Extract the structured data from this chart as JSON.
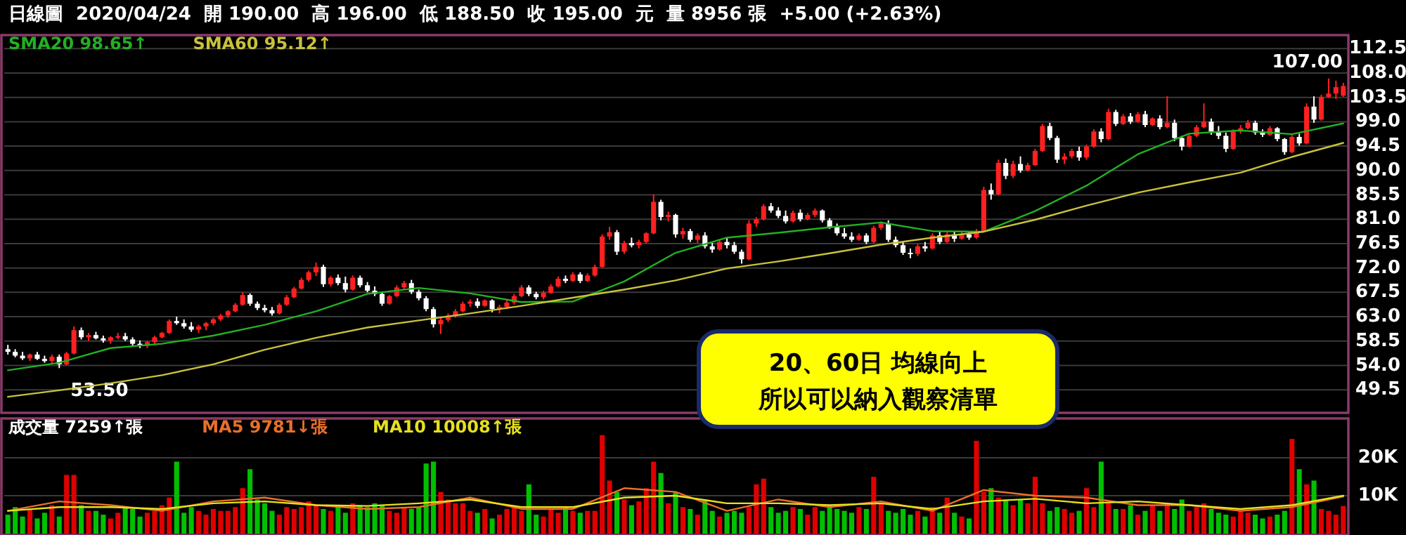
{
  "chart_data": [
    {
      "type": "candlestick",
      "title": "日線圖  2020/04/24  開 190.00  高 196.00  低 188.50  收 195.00  元  量 8956 張  +5.00 (+2.63%)",
      "categories": [
        null,
        null,
        null,
        null,
        null,
        null,
        null,
        null,
        null,
        null,
        null,
        null,
        null,
        null,
        null,
        null,
        null,
        null,
        null,
        null,
        null,
        null,
        null,
        null,
        null,
        null,
        null,
        null,
        null,
        null,
        null,
        null,
        null,
        null,
        null,
        null,
        null,
        null,
        null,
        null,
        null,
        null,
        null,
        null,
        null,
        null,
        null,
        null,
        null,
        null,
        null,
        null,
        null,
        null,
        null,
        null,
        null,
        null,
        null,
        null,
        null,
        null,
        null,
        null,
        null,
        null,
        null,
        null,
        null,
        null,
        null,
        null,
        null,
        null,
        null,
        null,
        null,
        null,
        null,
        null,
        null,
        null,
        null,
        null,
        null,
        null,
        null,
        null,
        null,
        null,
        null,
        null,
        null,
        null,
        null,
        null,
        null,
        null,
        null,
        null,
        null,
        null,
        null,
        null,
        null,
        null,
        null,
        null,
        null,
        null,
        null,
        null,
        null,
        null,
        null,
        null,
        null,
        null,
        null,
        null,
        null,
        null,
        null,
        null,
        null,
        null,
        null,
        null,
        null,
        null,
        null,
        null,
        null,
        null,
        null,
        null,
        null,
        null,
        null,
        null,
        null,
        null,
        null,
        null,
        null,
        null,
        null,
        null,
        null,
        null,
        null,
        null,
        null,
        null,
        null,
        null,
        null,
        null,
        null,
        null,
        null,
        null,
        null,
        null,
        null,
        null,
        null,
        null,
        null,
        null,
        null,
        null,
        null,
        null,
        null,
        null,
        null,
        null,
        null,
        null,
        null,
        null,
        null
      ],
      "ohlc": [
        [
          57,
          57.8,
          56,
          56.5
        ],
        [
          56.5,
          57,
          55.5,
          55.8
        ],
        [
          55.8,
          56.5,
          55,
          55.3
        ],
        [
          55.3,
          56.2,
          54.8,
          56
        ],
        [
          56,
          56.5,
          55,
          55.2
        ],
        [
          55.2,
          55.8,
          54.5,
          54.8
        ],
        [
          54.8,
          56,
          54.2,
          55.6
        ],
        [
          55.6,
          56,
          53.5,
          54.2
        ],
        [
          54.2,
          56.5,
          54,
          56.2
        ],
        [
          56.2,
          61.2,
          56,
          60.5
        ],
        [
          60.5,
          61,
          58.8,
          59.2
        ],
        [
          59.2,
          60,
          58.5,
          59.6
        ],
        [
          59.6,
          60.2,
          58.8,
          59
        ],
        [
          59,
          59.5,
          58.2,
          58.6
        ],
        [
          58.6,
          59.4,
          58,
          59.2
        ],
        [
          59.2,
          60,
          58.8,
          59.4
        ],
        [
          59.4,
          60,
          58.5,
          58.8
        ],
        [
          58.8,
          59.2,
          57.5,
          58
        ],
        [
          58,
          58.6,
          57.2,
          57.6
        ],
        [
          57.6,
          58.5,
          57.2,
          58.3
        ],
        [
          58.3,
          59.5,
          58,
          59.2
        ],
        [
          59.2,
          60.2,
          59,
          60
        ],
        [
          60,
          62.5,
          59.8,
          62.2
        ],
        [
          62.2,
          63,
          61.5,
          61.8
        ],
        [
          61.8,
          62.5,
          60.8,
          61.2
        ],
        [
          61.2,
          62,
          60.2,
          60.6
        ],
        [
          60.6,
          61.5,
          60,
          61.2
        ],
        [
          61.2,
          62,
          60.5,
          61.8
        ],
        [
          61.8,
          62.8,
          61.4,
          62.5
        ],
        [
          62.5,
          63.5,
          62.2,
          63.2
        ],
        [
          63.2,
          64.2,
          62.8,
          64
        ],
        [
          64,
          65.5,
          63.8,
          65.2
        ],
        [
          65.2,
          67.5,
          65,
          67
        ],
        [
          67,
          67.3,
          65,
          65.4
        ],
        [
          65.4,
          65.8,
          64.2,
          64.6
        ],
        [
          64.6,
          65.2,
          63.8,
          64.2
        ],
        [
          64.2,
          64.8,
          63.2,
          63.6
        ],
        [
          63.6,
          65.5,
          63.4,
          65.2
        ],
        [
          65.2,
          67,
          65,
          66.6
        ],
        [
          66.6,
          68.5,
          66.4,
          68.2
        ],
        [
          68.2,
          70.2,
          68,
          69.8
        ],
        [
          69.8,
          71.5,
          69.5,
          71.2
        ],
        [
          71.2,
          73,
          70.5,
          72.2
        ],
        [
          72.2,
          72.6,
          68.5,
          69
        ],
        [
          69,
          70.5,
          68.6,
          70.2
        ],
        [
          70.2,
          70.8,
          68.8,
          69.2
        ],
        [
          69.2,
          70.4,
          67.5,
          68
        ],
        [
          68,
          70.6,
          67.8,
          70.2
        ],
        [
          70.2,
          70.6,
          68.4,
          68.8
        ],
        [
          68.8,
          69.4,
          67.5,
          67.8
        ],
        [
          67.8,
          68.6,
          66.8,
          67.2
        ],
        [
          67.2,
          67.6,
          65,
          65.4
        ],
        [
          65.4,
          67,
          65.2,
          66.8
        ],
        [
          66.8,
          68.8,
          66.6,
          68.4
        ],
        [
          68.4,
          69.6,
          68,
          69.2
        ],
        [
          69.2,
          69.8,
          67.2,
          67.6
        ],
        [
          67.6,
          68,
          66,
          66.4
        ],
        [
          66.4,
          66.8,
          64,
          64.4
        ],
        [
          64.4,
          64.8,
          61,
          61.6
        ],
        [
          61.6,
          62.8,
          59.8,
          62.4
        ],
        [
          62.4,
          63.6,
          62,
          63.2
        ],
        [
          63.2,
          64.4,
          62.8,
          64
        ],
        [
          64,
          65.8,
          63.8,
          65.4
        ],
        [
          65.4,
          66.2,
          64.8,
          65.8
        ],
        [
          65.8,
          66.4,
          64.6,
          65
        ],
        [
          65,
          66.2,
          64.8,
          66
        ],
        [
          66,
          66.2,
          63.8,
          64.4
        ],
        [
          64.4,
          65.2,
          63.6,
          64.8
        ],
        [
          64.8,
          66,
          64.4,
          65.6
        ],
        [
          65.6,
          67.2,
          65.2,
          66.8
        ],
        [
          66.8,
          68.8,
          66.6,
          68.4
        ],
        [
          68.4,
          68.8,
          66.8,
          67.2
        ],
        [
          67.2,
          67.6,
          66.2,
          66.6
        ],
        [
          66.6,
          67.8,
          66.2,
          67.4
        ],
        [
          67.4,
          69,
          67.2,
          68.6
        ],
        [
          68.6,
          70.4,
          68.4,
          70
        ],
        [
          70,
          70.6,
          69.2,
          69.6
        ],
        [
          69.6,
          71.2,
          69.4,
          70.8
        ],
        [
          70.8,
          71.2,
          69.2,
          69.6
        ],
        [
          69.6,
          71,
          69.4,
          70.6
        ],
        [
          70.6,
          72.6,
          70.4,
          72.2
        ],
        [
          72.2,
          78.2,
          72,
          77.8
        ],
        [
          77.8,
          79.6,
          77.2,
          78.6
        ],
        [
          78.6,
          79,
          74.4,
          75
        ],
        [
          75,
          77,
          74.6,
          76.6
        ],
        [
          76.6,
          77.6,
          75.8,
          76.2
        ],
        [
          76.2,
          77.2,
          75.6,
          76.8
        ],
        [
          76.8,
          78.6,
          76.6,
          78.4
        ],
        [
          78.4,
          85.6,
          78.2,
          84.2
        ],
        [
          84.2,
          84.6,
          80.8,
          81.4
        ],
        [
          81.4,
          82.4,
          80.6,
          81.8
        ],
        [
          81.8,
          82,
          77.6,
          78.2
        ],
        [
          78.2,
          79.4,
          77.4,
          78.8
        ],
        [
          78.8,
          79.2,
          76.8,
          77.2
        ],
        [
          77.2,
          78.4,
          76.6,
          78
        ],
        [
          78,
          78.6,
          75.6,
          76
        ],
        [
          76,
          76.6,
          74.8,
          75.4
        ],
        [
          75.4,
          77.2,
          75.2,
          76.8
        ],
        [
          76.8,
          77.6,
          75.6,
          76.2
        ],
        [
          76.2,
          76.8,
          74.6,
          75
        ],
        [
          75,
          75.4,
          72.8,
          73.6
        ],
        [
          73.6,
          80.8,
          73.4,
          80.2
        ],
        [
          80.2,
          81.4,
          79.6,
          81
        ],
        [
          81,
          83.8,
          80.8,
          83.4
        ],
        [
          83.4,
          84,
          82.2,
          82.6
        ],
        [
          82.6,
          83.2,
          81.2,
          81.6
        ],
        [
          81.6,
          82.6,
          80.2,
          80.6
        ],
        [
          80.6,
          82.6,
          80.4,
          82.2
        ],
        [
          82.2,
          82.8,
          80.6,
          81
        ],
        [
          81,
          82.2,
          80.8,
          81.8
        ],
        [
          81.8,
          83,
          81.4,
          82.6
        ],
        [
          82.6,
          82.8,
          80.4,
          80.8
        ],
        [
          80.8,
          81.2,
          79.2,
          79.6
        ],
        [
          79.6,
          80.2,
          78,
          78.4
        ],
        [
          78.4,
          79.4,
          77.4,
          77.8
        ],
        [
          77.8,
          78.6,
          76.8,
          77.2
        ],
        [
          77.2,
          78.4,
          77,
          78
        ],
        [
          78,
          78.4,
          76.4,
          76.8
        ],
        [
          76.8,
          79.8,
          76.6,
          79.4
        ],
        [
          79.4,
          80.6,
          79,
          80.2
        ],
        [
          80.2,
          80.8,
          76.8,
          77.2
        ],
        [
          77.2,
          77.8,
          75.8,
          76.2
        ],
        [
          76.2,
          77,
          74.4,
          74.8
        ],
        [
          74.8,
          75.6,
          73.8,
          74.6
        ],
        [
          74.6,
          76.4,
          74.2,
          76
        ],
        [
          76,
          76.8,
          75,
          75.6
        ],
        [
          75.6,
          78.4,
          75.4,
          78
        ],
        [
          78,
          78.8,
          76.4,
          76.8
        ],
        [
          76.8,
          78.6,
          76.6,
          78.2
        ],
        [
          78.2,
          78.8,
          76.8,
          77.4
        ],
        [
          77.4,
          78.6,
          77.2,
          78.2
        ],
        [
          78.2,
          78.8,
          77.2,
          77.6
        ],
        [
          77.6,
          79.2,
          77.4,
          78.8
        ],
        [
          78.8,
          87,
          78.6,
          86.4
        ],
        [
          86.4,
          87.6,
          84.6,
          85.6
        ],
        [
          85.6,
          92,
          85.4,
          91.4
        ],
        [
          91.4,
          92.2,
          88.4,
          89
        ],
        [
          89,
          91.8,
          88.6,
          91.2
        ],
        [
          91.2,
          92.6,
          89.6,
          90
        ],
        [
          90,
          91.4,
          89.8,
          91
        ],
        [
          91,
          94,
          90.8,
          93.6
        ],
        [
          93.6,
          98.6,
          93.4,
          98.2
        ],
        [
          98.2,
          98.8,
          95.6,
          96
        ],
        [
          96,
          96.4,
          91.4,
          92
        ],
        [
          92,
          93.2,
          91.2,
          92.6
        ],
        [
          92.6,
          94,
          92.2,
          93.6
        ],
        [
          93.6,
          94.4,
          91.8,
          92.4
        ],
        [
          92.4,
          94.8,
          92,
          94.4
        ],
        [
          94.4,
          97.6,
          94.2,
          97.2
        ],
        [
          97.2,
          97.8,
          95.2,
          95.8
        ],
        [
          95.8,
          101.4,
          95.6,
          100.8
        ],
        [
          100.8,
          101.2,
          98.2,
          98.6
        ],
        [
          98.6,
          100.4,
          98.4,
          100
        ],
        [
          100,
          100.6,
          98.6,
          99
        ],
        [
          99,
          100.8,
          98.8,
          100.4
        ],
        [
          100.4,
          101,
          98,
          98.4
        ],
        [
          98.4,
          99.8,
          98.2,
          99.6
        ],
        [
          99.6,
          100.2,
          97.6,
          98
        ],
        [
          98,
          103.7,
          97.8,
          98.8
        ],
        [
          98.8,
          99.4,
          95.4,
          96
        ],
        [
          96,
          96.4,
          93.7,
          94.4
        ],
        [
          94.4,
          96.8,
          94.2,
          96.4
        ],
        [
          96.4,
          98.4,
          96.2,
          98
        ],
        [
          98,
          102.4,
          97.8,
          99
        ],
        [
          99,
          99.6,
          96.6,
          97.2
        ],
        [
          97.2,
          98.2,
          95.8,
          96.4
        ],
        [
          96.4,
          97,
          93.4,
          94
        ],
        [
          94,
          97.6,
          93.8,
          97.2
        ],
        [
          97.2,
          98.4,
          96.8,
          97.8
        ],
        [
          97.8,
          99.3,
          97.6,
          98.8
        ],
        [
          98.8,
          99.2,
          96.6,
          97
        ],
        [
          97,
          97.6,
          96.2,
          96.6
        ],
        [
          96.6,
          98.2,
          96.4,
          97.8
        ],
        [
          97.8,
          98,
          95.4,
          95.8
        ],
        [
          95.8,
          96,
          92.9,
          93.4
        ],
        [
          93.4,
          96.6,
          93.2,
          96.2
        ],
        [
          96.2,
          96.8,
          94.6,
          95
        ],
        [
          95,
          102.4,
          94.8,
          101.8
        ],
        [
          101.8,
          103.7,
          98.8,
          99.4
        ],
        [
          99.4,
          104,
          99.2,
          103.6
        ],
        [
          103.6,
          107,
          103.4,
          104.2
        ],
        [
          104.2,
          106.6,
          103.2,
          105.4
        ],
        [
          103.8,
          106.2,
          103.6,
          105.6
        ]
      ],
      "ylim": [
        45.5,
        115
      ],
      "yticks": [
        {
          "value": 49.5,
          "label": "49.5"
        },
        {
          "value": 54,
          "label": "54.0"
        },
        {
          "value": 58.5,
          "label": "58.5"
        },
        {
          "value": 63,
          "label": "63.0"
        },
        {
          "value": 67.5,
          "label": "67.5"
        },
        {
          "value": 72,
          "label": "72.0"
        },
        {
          "value": 76.5,
          "label": "76.5"
        },
        {
          "value": 81,
          "label": "81.0"
        },
        {
          "value": 85.5,
          "label": "85.5"
        },
        {
          "value": 90,
          "label": "90.0"
        },
        {
          "value": 94.5,
          "label": "94.5"
        },
        {
          "value": 99,
          "label": "99.0"
        },
        {
          "value": 103.5,
          "label": "103.5"
        },
        {
          "value": 108,
          "label": "108.0"
        },
        {
          "value": 112.5,
          "label": "112.5"
        }
      ],
      "tick_labels": "y",
      "grid": "y",
      "annotations": [
        "20、60日 均線向上",
        "所以可以納入觀察清單",
        "53.50",
        "107.00"
      ]
    },
    {
      "type": "line",
      "categories": [
        null,
        null,
        null,
        null,
        null,
        null,
        null,
        null,
        null,
        null,
        null,
        null,
        null,
        null,
        null,
        null,
        null,
        null,
        null,
        null,
        null,
        null,
        null,
        null,
        null,
        null,
        null
      ],
      "series": [
        {
          "name": "SMA20 98.65↑",
          "color": "#22b022",
          "values": [
            53.1,
            54.5,
            57.2,
            58,
            59.5,
            61.5,
            64,
            67.2,
            68.3,
            67.3,
            65.7,
            65.8,
            69.5,
            74.8,
            77.6,
            78.5,
            79.5,
            80.4,
            78.8,
            78.7,
            82.5,
            87.2,
            93,
            96.8,
            97.4,
            96.7,
            98.7
          ]
        },
        {
          "name": "SMA60 95.12↑",
          "color": "#c8c23c",
          "values": [
            48.2,
            49.4,
            50.7,
            52.2,
            54.2,
            56.9,
            59.1,
            61,
            62.3,
            63.6,
            65,
            66.5,
            68,
            69.7,
            71.9,
            73.2,
            74.7,
            76.3,
            77.6,
            78.7,
            80.9,
            83.5,
            85.9,
            87.8,
            89.6,
            92.5,
            95.1
          ]
        }
      ],
      "ylim": [
        45.5,
        115
      ],
      "tick_labels": false
    },
    {
      "type": "bar",
      "categories": [
        null,
        null,
        null,
        null,
        null,
        null,
        null,
        null,
        null,
        null,
        null,
        null,
        null,
        null,
        null,
        null,
        null,
        null,
        null,
        null,
        null,
        null,
        null,
        null,
        null,
        null,
        null,
        null,
        null,
        null,
        null,
        null,
        null,
        null,
        null,
        null,
        null,
        null,
        null,
        null,
        null,
        null,
        null,
        null,
        null,
        null,
        null,
        null,
        null,
        null,
        null,
        null,
        null,
        null,
        null,
        null,
        null,
        null,
        null,
        null,
        null,
        null,
        null,
        null,
        null,
        null,
        null,
        null,
        null,
        null,
        null,
        null,
        null,
        null,
        null,
        null,
        null,
        null,
        null,
        null,
        null,
        null,
        null,
        null,
        null,
        null,
        null,
        null,
        null,
        null,
        null,
        null,
        null,
        null,
        null,
        null,
        null,
        null,
        null,
        null,
        null,
        null,
        null,
        null,
        null,
        null,
        null,
        null,
        null,
        null,
        null,
        null,
        null,
        null,
        null,
        null,
        null,
        null,
        null,
        null,
        null,
        null,
        null,
        null,
        null,
        null,
        null,
        null,
        null,
        null,
        null,
        null,
        null,
        null,
        null,
        null,
        null,
        null,
        null,
        null,
        null,
        null,
        null,
        null,
        null,
        null,
        null,
        null,
        null,
        null,
        null,
        null,
        null,
        null,
        null,
        null,
        null,
        null,
        null,
        null,
        null,
        null,
        null,
        null,
        null,
        null,
        null,
        null,
        null,
        null,
        null,
        null,
        null,
        null,
        null,
        null,
        null,
        null,
        null,
        null,
        null,
        null,
        null
      ],
      "series": [
        {
          "name": "成交量 7259↑張",
          "values": [
            5000,
            7000,
            4500,
            6500,
            4000,
            5500,
            7500,
            4500,
            15500,
            15500,
            7500,
            6000,
            6000,
            5000,
            4000,
            5500,
            7000,
            6500,
            4500,
            5500,
            6000,
            7500,
            9500,
            19000,
            5500,
            7000,
            6000,
            5000,
            6500,
            6000,
            6000,
            7000,
            12000,
            17000,
            9000,
            8000,
            6000,
            5000,
            7000,
            6500,
            7000,
            8500,
            7500,
            6500,
            6000,
            7000,
            5500,
            8000,
            7500,
            7000,
            8000,
            7500,
            6000,
            5500,
            7000,
            6500,
            7000,
            18500,
            19000,
            11000,
            9000,
            8000,
            8000,
            6000,
            5500,
            6500,
            4000,
            5000,
            6500,
            7000,
            6000,
            13000,
            5000,
            4500,
            6500,
            5500,
            7000,
            6000,
            5500,
            6000,
            6000,
            26000,
            14000,
            11000,
            9000,
            7500,
            8500,
            12000,
            19000,
            16000,
            8000,
            11000,
            7000,
            6500,
            5000,
            9000,
            6000,
            4500,
            5500,
            6000,
            5500,
            7000,
            13000,
            14500,
            7000,
            5500,
            6000,
            7000,
            6500,
            5000,
            7000,
            6000,
            7500,
            6500,
            6000,
            5500,
            7000,
            6500,
            15000,
            8000,
            6000,
            5500,
            6500,
            5000,
            6000,
            4500,
            7000,
            5500,
            9500,
            5500,
            4500,
            4000,
            24500,
            11000,
            12000,
            9500,
            9000,
            7500,
            9000,
            8000,
            15000,
            8000,
            6000,
            7000,
            6500,
            5500,
            6000,
            12000,
            7000,
            19000,
            8000,
            6500,
            6500,
            7500,
            5000,
            6000,
            7500,
            6000,
            8000,
            6500,
            9000,
            6000,
            7000,
            8000,
            6500,
            5500,
            5000,
            4500,
            6000,
            5500,
            5000,
            4000,
            4500,
            5000,
            6000,
            25000,
            17000,
            13000,
            14000,
            6500,
            6000,
            5000,
            7300
          ],
          "colors": [
            "#00c000",
            "#00c000",
            "#00c000",
            "#e00000",
            "#00c000",
            "#00c000",
            "#e00000",
            "#00c000",
            "#e00000",
            "#e00000",
            "#00c000",
            "#e00000",
            "#00c000",
            "#00c000",
            "#e00000",
            "#e00000",
            "#00c000",
            "#00c000",
            "#00c000",
            "#e00000",
            "#e00000",
            "#e00000",
            "#e00000",
            "#00c000",
            "#00c000",
            "#00c000",
            "#e00000",
            "#e00000",
            "#e00000",
            "#e00000",
            "#e00000",
            "#e00000",
            "#e00000",
            "#00c000",
            "#00c000",
            "#00c000",
            "#00c000",
            "#e00000",
            "#e00000",
            "#e00000",
            "#e00000",
            "#e00000",
            "#e00000",
            "#00c000",
            "#e00000",
            "#00c000",
            "#00c000",
            "#e00000",
            "#00c000",
            "#00c000",
            "#00c000",
            "#00c000",
            "#e00000",
            "#e00000",
            "#e00000",
            "#00c000",
            "#00c000",
            "#00c000",
            "#00c000",
            "#e00000",
            "#e00000",
            "#e00000",
            "#e00000",
            "#e00000",
            "#00c000",
            "#e00000",
            "#00c000",
            "#e00000",
            "#e00000",
            "#e00000",
            "#e00000",
            "#00c000",
            "#00c000",
            "#e00000",
            "#e00000",
            "#e00000",
            "#00c000",
            "#e00000",
            "#00c000",
            "#e00000",
            "#e00000",
            "#e00000",
            "#e00000",
            "#00c000",
            "#e00000",
            "#00c000",
            "#e00000",
            "#e00000",
            "#e00000",
            "#00c000",
            "#e00000",
            "#00c000",
            "#e00000",
            "#00c000",
            "#e00000",
            "#00c000",
            "#00c000",
            "#e00000",
            "#00c000",
            "#00c000",
            "#00c000",
            "#e00000",
            "#e00000",
            "#e00000",
            "#00c000",
            "#00c000",
            "#00c000",
            "#e00000",
            "#00c000",
            "#e00000",
            "#e00000",
            "#00c000",
            "#00c000",
            "#00c000",
            "#00c000",
            "#00c000",
            "#e00000",
            "#00c000",
            "#e00000",
            "#e00000",
            "#00c000",
            "#00c000",
            "#00c000",
            "#00c000",
            "#e00000",
            "#00c000",
            "#e00000",
            "#00c000",
            "#e00000",
            "#00c000",
            "#e00000",
            "#00c000",
            "#e00000",
            "#e00000",
            "#00c000",
            "#e00000",
            "#00c000",
            "#e00000",
            "#00c000",
            "#e00000",
            "#e00000",
            "#e00000",
            "#00c000",
            "#00c000",
            "#e00000",
            "#e00000",
            "#00c000",
            "#e00000",
            "#e00000",
            "#00c000",
            "#e00000",
            "#00c000",
            "#e00000",
            "#00c000",
            "#e00000",
            "#00c000",
            "#e00000",
            "#00c000",
            "#e00000",
            "#00c000",
            "#00c000",
            "#e00000",
            "#e00000",
            "#e00000",
            "#00c000",
            "#00c000",
            "#00c000",
            "#e00000",
            "#e00000",
            "#e00000",
            "#00c000",
            "#00c000",
            "#e00000",
            "#00c000",
            "#00c000",
            "#e00000",
            "#00c000",
            "#e00000",
            "#00c000",
            "#e00000",
            "#e00000",
            "#e00000",
            "#e00000"
          ]
        }
      ],
      "ylim": [
        0,
        30400
      ],
      "yticks": [
        {
          "value": 10000,
          "label": "10K"
        },
        {
          "value": 20000,
          "label": "20K"
        }
      ],
      "tick_labels": "y",
      "grid": "y"
    },
    {
      "type": "line",
      "categories": [
        null,
        null,
        null,
        null,
        null,
        null,
        null,
        null,
        null,
        null,
        null,
        null,
        null,
        null,
        null,
        null,
        null,
        null,
        null,
        null,
        null,
        null,
        null,
        null,
        null,
        null,
        null
      ],
      "series": [
        {
          "name": "MA5 9781↓張",
          "color": "#e8702a",
          "values": [
            6000,
            8500,
            7500,
            6000,
            8500,
            9500,
            7500,
            6500,
            7000,
            9500,
            6500,
            6500,
            12000,
            11000,
            6000,
            9000,
            7000,
            8500,
            6000,
            11500,
            10000,
            9500,
            7500,
            7500,
            6000,
            7000,
            9800
          ]
        },
        {
          "name": "MA10 10008↑張",
          "color": "#e6e020",
          "values": [
            6000,
            7000,
            7000,
            6500,
            8000,
            8500,
            7500,
            7300,
            8000,
            9000,
            7000,
            7000,
            9500,
            10000,
            8000,
            8000,
            7500,
            8000,
            6500,
            8500,
            9200,
            8000,
            8500,
            7500,
            6500,
            7500,
            10000
          ]
        }
      ],
      "ylim": [
        0,
        30400
      ],
      "tick_labels": false
    }
  ]
}
